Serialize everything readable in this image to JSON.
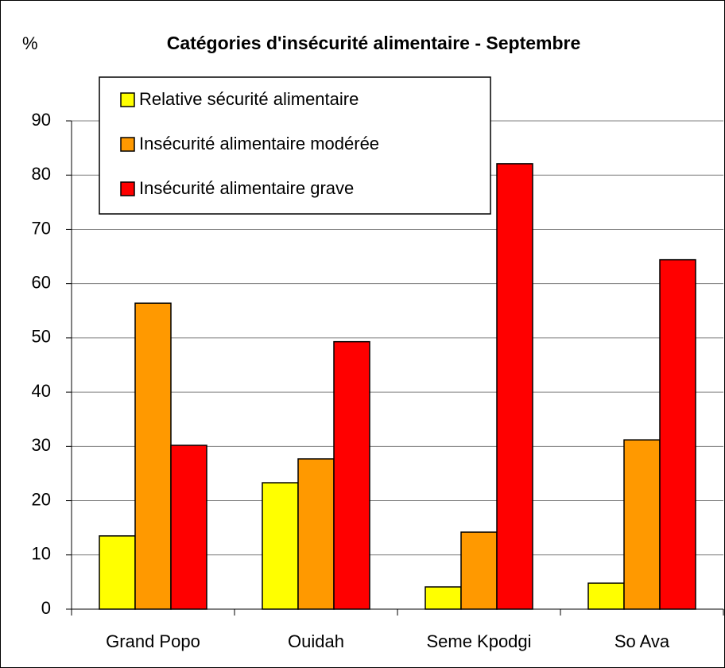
{
  "chart_data": {
    "type": "bar",
    "title": "Catégories d'insécurité alimentaire - Septembre",
    "y_label": "%",
    "categories": [
      "Grand Popo",
      "Ouidah",
      "Seme Kpodgi",
      "So Ava"
    ],
    "series": [
      {
        "name": "Relative sécurité alimentaire",
        "color": "#ffff00",
        "values": [
          13.5,
          23.3,
          4.1,
          4.8
        ]
      },
      {
        "name": "Insécurité alimentaire modérée",
        "color": "#ff9900",
        "values": [
          56.4,
          27.7,
          14.2,
          31.2
        ]
      },
      {
        "name": "Insécurité alimentaire grave",
        "color": "#ff0000",
        "values": [
          30.2,
          49.3,
          82.1,
          64.4
        ]
      }
    ],
    "ylim": [
      0,
      90
    ],
    "yticks": [
      0,
      10,
      20,
      30,
      40,
      50,
      60,
      70,
      80,
      90
    ],
    "grid": true,
    "legend": "top-left"
  }
}
